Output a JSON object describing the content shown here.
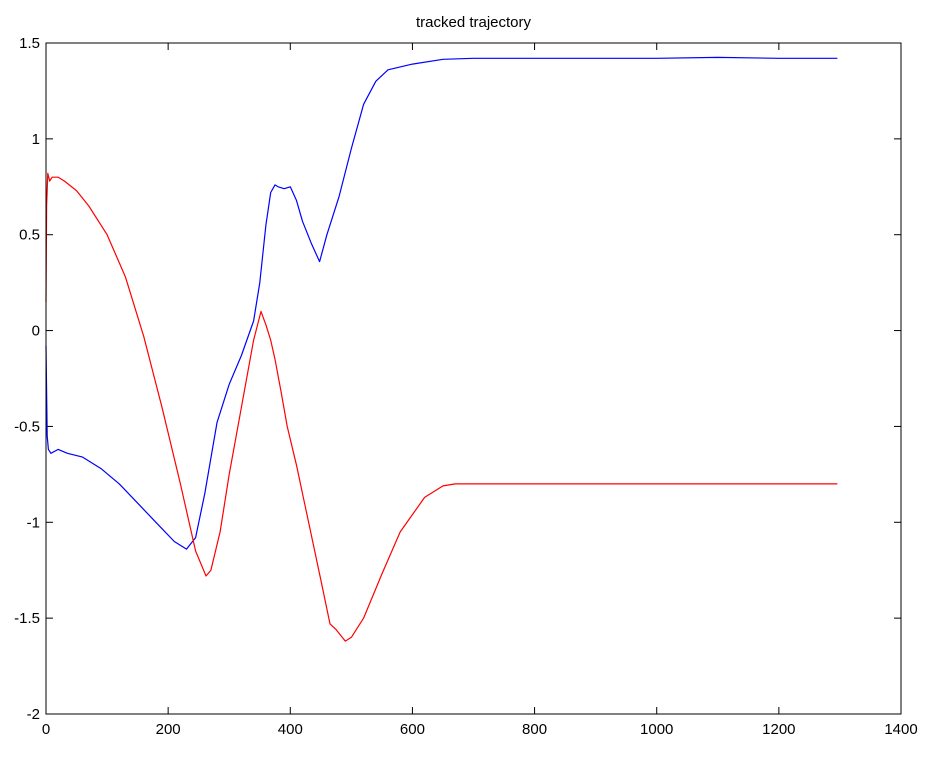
{
  "chart_data": {
    "type": "line",
    "title": "tracked trajectory",
    "xlabel": "",
    "ylabel": "",
    "xlim": [
      0,
      1400
    ],
    "ylim": [
      -2,
      1.5
    ],
    "xticks": [
      0,
      200,
      400,
      600,
      800,
      1000,
      1200,
      1400
    ],
    "yticks": [
      -2,
      -1.5,
      -1,
      -0.5,
      0,
      0.5,
      1,
      1.5
    ],
    "grid": false,
    "legend": "none",
    "series": [
      {
        "color": "#0000ff",
        "x": [
          0,
          2,
          4,
          8,
          20,
          35,
          60,
          90,
          120,
          150,
          180,
          210,
          230,
          245,
          260,
          280,
          300,
          320,
          340,
          350,
          360,
          368,
          375,
          380,
          390,
          400,
          410,
          420,
          435,
          448,
          460,
          480,
          500,
          520,
          540,
          560,
          600,
          650,
          700,
          800,
          900,
          1000,
          1100,
          1200,
          1295
        ],
        "y": [
          -0.08,
          -0.55,
          -0.62,
          -0.64,
          -0.62,
          -0.64,
          -0.66,
          -0.72,
          -0.8,
          -0.9,
          -1.0,
          -1.1,
          -1.14,
          -1.08,
          -0.85,
          -0.48,
          -0.28,
          -0.13,
          0.05,
          0.25,
          0.55,
          0.72,
          0.76,
          0.75,
          0.74,
          0.75,
          0.68,
          0.57,
          0.45,
          0.36,
          0.5,
          0.7,
          0.95,
          1.18,
          1.3,
          1.36,
          1.39,
          1.415,
          1.42,
          1.42,
          1.42,
          1.42,
          1.425,
          1.42,
          1.42
        ]
      },
      {
        "color": "#ff0000",
        "x": [
          0,
          1,
          3,
          6,
          10,
          20,
          30,
          50,
          70,
          100,
          130,
          160,
          190,
          220,
          245,
          262,
          270,
          285,
          300,
          320,
          340,
          352,
          360,
          368,
          375,
          385,
          395,
          410,
          430,
          450,
          465,
          475,
          490,
          500,
          520,
          550,
          580,
          620,
          650,
          670,
          700,
          800,
          900,
          1000,
          1100,
          1200,
          1295
        ],
        "y": [
          0.15,
          0.65,
          0.82,
          0.78,
          0.8,
          0.8,
          0.78,
          0.73,
          0.65,
          0.5,
          0.28,
          -0.03,
          -0.4,
          -0.8,
          -1.15,
          -1.28,
          -1.25,
          -1.05,
          -0.75,
          -0.4,
          -0.05,
          0.1,
          0.03,
          -0.05,
          -0.15,
          -0.32,
          -0.5,
          -0.7,
          -1.0,
          -1.3,
          -1.53,
          -1.56,
          -1.62,
          -1.6,
          -1.5,
          -1.27,
          -1.05,
          -0.87,
          -0.81,
          -0.8,
          -0.8,
          -0.8,
          -0.8,
          -0.8,
          -0.8,
          -0.8,
          -0.8
        ]
      }
    ]
  }
}
